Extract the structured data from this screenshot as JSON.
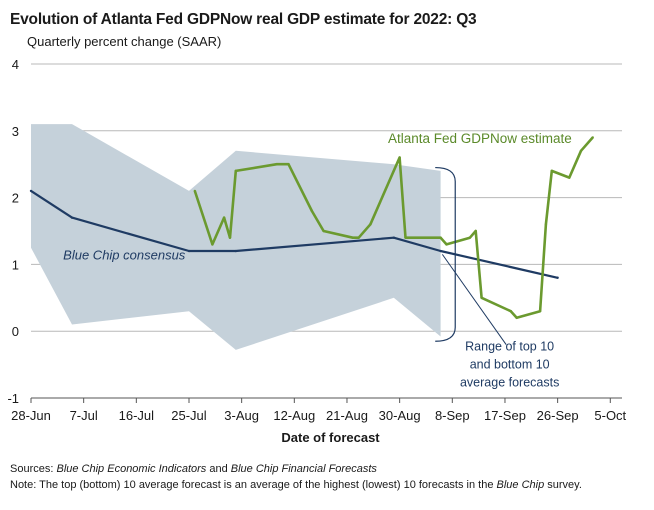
{
  "title": "Evolution of Atlanta Fed GDPNow real GDP estimate for 2022: Q3",
  "subtitle": "Quarterly percent change (SAAR)",
  "footer": {
    "sources_label": "Sources:",
    "sources_text_1": "Blue Chip Economic Indicators",
    "sources_and": " and ",
    "sources_text_2": "Blue Chip Financial Forecasts",
    "note_label": "Note:",
    "note_text_1": " The top (bottom) 10 average forecast is an average of the highest (lowest) 10 forecasts in the ",
    "note_italic": "Blue Chip",
    "note_text_2": " survey."
  },
  "chart_data": {
    "type": "line",
    "title": "Evolution of Atlanta Fed GDPNow real GDP estimate for 2022: Q3",
    "subtitle": "Quarterly percent change (SAAR)",
    "xlabel": "Date of forecast",
    "ylabel": "",
    "x_unit": "days since 28-Jun",
    "xlim": [
      0,
      101
    ],
    "ylim": [
      -1,
      4
    ],
    "yticks": [
      -1,
      0,
      1,
      2,
      3,
      4
    ],
    "xticks": [
      {
        "day": 0,
        "label": "28-Jun"
      },
      {
        "day": 9,
        "label": "7-Jul"
      },
      {
        "day": 18,
        "label": "16-Jul"
      },
      {
        "day": 27,
        "label": "25-Jul"
      },
      {
        "day": 36,
        "label": "3-Aug"
      },
      {
        "day": 45,
        "label": "12-Aug"
      },
      {
        "day": 54,
        "label": "21-Aug"
      },
      {
        "day": 63,
        "label": "30-Aug"
      },
      {
        "day": 72,
        "label": "8-Sep"
      },
      {
        "day": 81,
        "label": "17-Sep"
      },
      {
        "day": 90,
        "label": "26-Sep"
      },
      {
        "day": 99,
        "label": "5-Oct"
      }
    ],
    "grid": true,
    "range_band": {
      "name": "Range of top 10 and bottom 10 average forecasts",
      "upper": [
        [
          0,
          3.1
        ],
        [
          7,
          3.1
        ],
        [
          27,
          2.1
        ],
        [
          35,
          2.7
        ],
        [
          62,
          2.5
        ],
        [
          70,
          2.4
        ]
      ],
      "lower": [
        [
          0,
          1.25
        ],
        [
          7,
          0.1
        ],
        [
          27,
          0.3
        ],
        [
          35,
          -0.28
        ],
        [
          62,
          0.5
        ],
        [
          70,
          -0.08
        ]
      ]
    },
    "series": [
      {
        "name": "Blue Chip consensus",
        "color": "#1f3b63",
        "points": [
          [
            0,
            2.1
          ],
          [
            7,
            1.7
          ],
          [
            27,
            1.2
          ],
          [
            35,
            1.2
          ],
          [
            62,
            1.4
          ],
          [
            70,
            1.2
          ],
          [
            90,
            0.8
          ]
        ]
      },
      {
        "name": "Atlanta Fed GDPNow estimate",
        "color": "#6b9a2f",
        "points": [
          [
            28,
            2.1
          ],
          [
            31,
            1.3
          ],
          [
            33,
            1.7
          ],
          [
            34,
            1.4
          ],
          [
            35,
            2.4
          ],
          [
            42,
            2.5
          ],
          [
            44,
            2.5
          ],
          [
            48,
            1.8
          ],
          [
            50,
            1.5
          ],
          [
            55,
            1.4
          ],
          [
            56,
            1.4
          ],
          [
            58,
            1.6
          ],
          [
            63,
            2.6
          ],
          [
            64,
            1.4
          ],
          [
            70,
            1.4
          ],
          [
            71,
            1.3
          ],
          [
            75,
            1.4
          ],
          [
            76,
            1.5
          ],
          [
            77,
            0.5
          ],
          [
            82,
            0.3
          ],
          [
            83,
            0.2
          ],
          [
            87,
            0.3
          ],
          [
            88,
            1.6
          ],
          [
            89,
            2.4
          ],
          [
            92,
            2.3
          ],
          [
            94,
            2.7
          ],
          [
            96,
            2.9
          ]
        ]
      }
    ],
    "annotations": {
      "gdpnow": "Atlanta Fed GDPNow estimate",
      "consensus": "Blue Chip consensus",
      "range_line1": "Range of top 10",
      "range_line2": "and bottom 10",
      "range_line3": "average forecasts"
    },
    "colors": {
      "band": "#c5d1da",
      "consensus": "#1f3b63",
      "gdpnow": "#6b9a2f",
      "grid": "#b8b8b8",
      "axis": "#555555"
    }
  }
}
